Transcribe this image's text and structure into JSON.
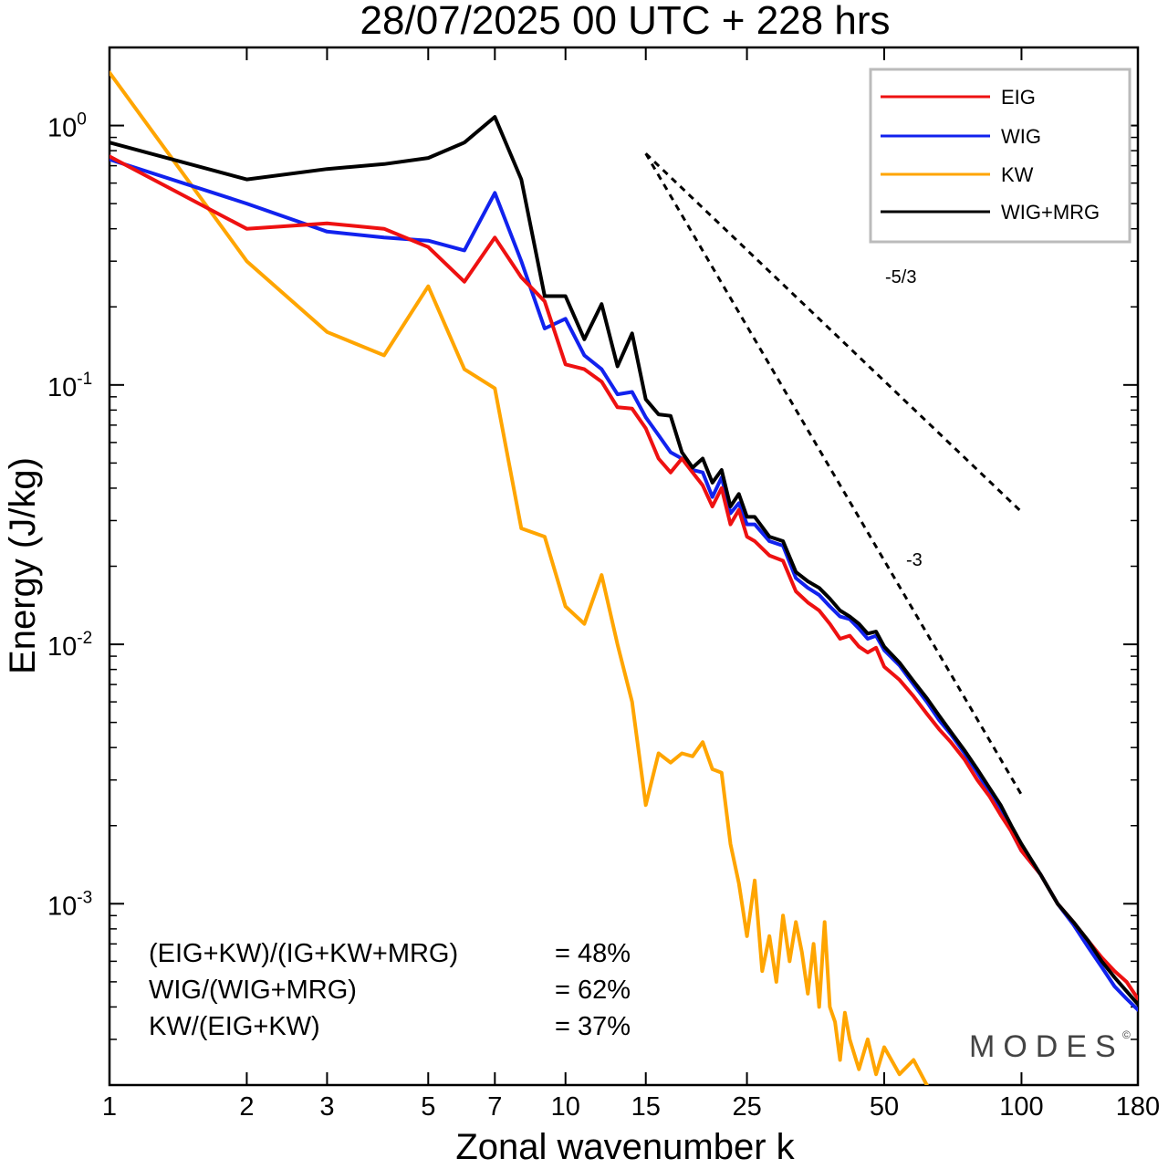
{
  "chart_data": {
    "type": "line",
    "title": "28/07/2025  00 UTC  + 228 hrs",
    "xlabel": "Zonal wavenumber k",
    "ylabel": "Energy (J/kg)",
    "xscale": "log",
    "yscale": "log",
    "xlim": [
      1,
      180
    ],
    "ylim": [
      0.0002,
      2.0
    ],
    "x_ticks": [
      {
        "value": 1,
        "label": "1"
      },
      {
        "value": 2,
        "label": "2"
      },
      {
        "value": 3,
        "label": "3"
      },
      {
        "value": 5,
        "label": "5"
      },
      {
        "value": 7,
        "label": "7"
      },
      {
        "value": 10,
        "label": "10"
      },
      {
        "value": 15,
        "label": "15"
      },
      {
        "value": 25,
        "label": "25"
      },
      {
        "value": 50,
        "label": "50"
      },
      {
        "value": 100,
        "label": "100"
      },
      {
        "value": 180,
        "label": "180"
      }
    ],
    "y_ticks": [
      {
        "value": 1,
        "base": "10",
        "exp": "0"
      },
      {
        "value": 0.1,
        "base": "10",
        "exp": "-1"
      },
      {
        "value": 0.01,
        "base": "10",
        "exp": "-2"
      },
      {
        "value": 0.001,
        "base": "10",
        "exp": "-3"
      }
    ],
    "series": [
      {
        "name": "EIG",
        "color": "#ee1111",
        "points": [
          [
            1,
            0.76
          ],
          [
            2,
            0.4
          ],
          [
            3,
            0.42
          ],
          [
            4,
            0.4
          ],
          [
            5,
            0.34
          ],
          [
            6,
            0.25
          ],
          [
            7,
            0.37
          ],
          [
            8,
            0.26
          ],
          [
            9,
            0.21
          ],
          [
            10,
            0.12
          ],
          [
            11,
            0.115
          ],
          [
            12,
            0.103
          ],
          [
            13,
            0.082
          ],
          [
            14,
            0.081
          ],
          [
            15,
            0.068
          ],
          [
            16,
            0.052
          ],
          [
            17,
            0.046
          ],
          [
            18,
            0.052
          ],
          [
            19,
            0.046
          ],
          [
            20,
            0.041
          ],
          [
            21,
            0.034
          ],
          [
            22,
            0.04
          ],
          [
            23,
            0.029
          ],
          [
            24,
            0.033
          ],
          [
            25,
            0.026
          ],
          [
            26,
            0.025
          ],
          [
            28,
            0.022
          ],
          [
            30,
            0.021
          ],
          [
            32,
            0.016
          ],
          [
            34,
            0.0145
          ],
          [
            36,
            0.0135
          ],
          [
            38,
            0.012
          ],
          [
            40,
            0.0105
          ],
          [
            42,
            0.0108
          ],
          [
            44,
            0.0098
          ],
          [
            46,
            0.0093
          ],
          [
            48,
            0.0097
          ],
          [
            50,
            0.0082
          ],
          [
            54,
            0.0073
          ],
          [
            58,
            0.0063
          ],
          [
            62,
            0.0054
          ],
          [
            66,
            0.0047
          ],
          [
            70,
            0.0042
          ],
          [
            75,
            0.0036
          ],
          [
            80,
            0.003
          ],
          [
            85,
            0.0026
          ],
          [
            90,
            0.0022
          ],
          [
            95,
            0.0019
          ],
          [
            100,
            0.0016
          ],
          [
            110,
            0.0013
          ],
          [
            120,
            0.001
          ],
          [
            130,
            0.00085
          ],
          [
            140,
            0.00072
          ],
          [
            150,
            0.00062
          ],
          [
            160,
            0.00055
          ],
          [
            170,
            0.0005
          ],
          [
            180,
            0.00043
          ]
        ]
      },
      {
        "name": "WIG",
        "color": "#1122ee",
        "points": [
          [
            1,
            0.74
          ],
          [
            2,
            0.5
          ],
          [
            3,
            0.39
          ],
          [
            4,
            0.37
          ],
          [
            5,
            0.36
          ],
          [
            6,
            0.33
          ],
          [
            7,
            0.55
          ],
          [
            8,
            0.3
          ],
          [
            9,
            0.165
          ],
          [
            10,
            0.18
          ],
          [
            11,
            0.13
          ],
          [
            12,
            0.115
          ],
          [
            13,
            0.092
          ],
          [
            14,
            0.094
          ],
          [
            15,
            0.075
          ],
          [
            16,
            0.064
          ],
          [
            17,
            0.055
          ],
          [
            18,
            0.052
          ],
          [
            19,
            0.047
          ],
          [
            20,
            0.046
          ],
          [
            21,
            0.037
          ],
          [
            22,
            0.044
          ],
          [
            23,
            0.032
          ],
          [
            24,
            0.035
          ],
          [
            25,
            0.029
          ],
          [
            26,
            0.029
          ],
          [
            28,
            0.025
          ],
          [
            30,
            0.024
          ],
          [
            32,
            0.018
          ],
          [
            34,
            0.0165
          ],
          [
            36,
            0.0155
          ],
          [
            38,
            0.014
          ],
          [
            40,
            0.0128
          ],
          [
            42,
            0.0125
          ],
          [
            44,
            0.0115
          ],
          [
            46,
            0.0105
          ],
          [
            48,
            0.0108
          ],
          [
            50,
            0.0095
          ],
          [
            54,
            0.0083
          ],
          [
            58,
            0.007
          ],
          [
            62,
            0.006
          ],
          [
            66,
            0.0051
          ],
          [
            70,
            0.0045
          ],
          [
            75,
            0.0038
          ],
          [
            80,
            0.0032
          ],
          [
            85,
            0.0027
          ],
          [
            90,
            0.0023
          ],
          [
            95,
            0.0019
          ],
          [
            100,
            0.0016
          ],
          [
            110,
            0.0013
          ],
          [
            120,
            0.001
          ],
          [
            130,
            0.00083
          ],
          [
            140,
            0.00068
          ],
          [
            150,
            0.00057
          ],
          [
            160,
            0.00048
          ],
          [
            170,
            0.00043
          ],
          [
            180,
            0.00039
          ]
        ]
      },
      {
        "name": "KW",
        "color": "#ffa500",
        "points": [
          [
            1,
            1.6
          ],
          [
            2,
            0.3
          ],
          [
            3,
            0.16
          ],
          [
            4,
            0.13
          ],
          [
            5,
            0.24
          ],
          [
            6,
            0.115
          ],
          [
            7,
            0.097
          ],
          [
            8,
            0.028
          ],
          [
            9,
            0.026
          ],
          [
            10,
            0.014
          ],
          [
            11,
            0.012
          ],
          [
            12,
            0.0185
          ],
          [
            13,
            0.01
          ],
          [
            14,
            0.006
          ],
          [
            15,
            0.0024
          ],
          [
            16,
            0.0038
          ],
          [
            17,
            0.0035
          ],
          [
            18,
            0.0038
          ],
          [
            19,
            0.0037
          ],
          [
            20,
            0.0042
          ],
          [
            21,
            0.0033
          ],
          [
            22,
            0.0032
          ],
          [
            23,
            0.0017
          ],
          [
            24,
            0.0012
          ],
          [
            25,
            0.00075
          ],
          [
            26,
            0.00123
          ],
          [
            27,
            0.00055
          ],
          [
            28,
            0.00075
          ],
          [
            29,
            0.0005
          ],
          [
            30,
            0.0009
          ],
          [
            31,
            0.0006
          ],
          [
            32,
            0.00085
          ],
          [
            33,
            0.00065
          ],
          [
            34,
            0.00045
          ],
          [
            35,
            0.0007
          ],
          [
            36,
            0.0004
          ],
          [
            37,
            0.00085
          ],
          [
            38,
            0.0004
          ],
          [
            39,
            0.00035
          ],
          [
            40,
            0.00025
          ],
          [
            41,
            0.00038
          ],
          [
            42,
            0.0003
          ],
          [
            44,
            0.00023
          ],
          [
            46,
            0.0003
          ],
          [
            48,
            0.00022
          ],
          [
            50,
            0.00028
          ],
          [
            54,
            0.00022
          ],
          [
            58,
            0.00025
          ],
          [
            62,
            0.0002
          ]
        ]
      },
      {
        "name": "WIG+MRG",
        "color": "#000000",
        "points": [
          [
            1,
            0.86
          ],
          [
            2,
            0.62
          ],
          [
            3,
            0.68
          ],
          [
            4,
            0.71
          ],
          [
            5,
            0.75
          ],
          [
            6,
            0.86
          ],
          [
            7,
            1.08
          ],
          [
            8,
            0.62
          ],
          [
            9,
            0.22
          ],
          [
            10,
            0.22
          ],
          [
            11,
            0.15
          ],
          [
            12,
            0.205
          ],
          [
            13,
            0.118
          ],
          [
            14,
            0.158
          ],
          [
            15,
            0.088
          ],
          [
            16,
            0.077
          ],
          [
            17,
            0.076
          ],
          [
            18,
            0.055
          ],
          [
            19,
            0.048
          ],
          [
            20,
            0.052
          ],
          [
            21,
            0.042
          ],
          [
            22,
            0.047
          ],
          [
            23,
            0.034
          ],
          [
            24,
            0.038
          ],
          [
            25,
            0.031
          ],
          [
            26,
            0.031
          ],
          [
            28,
            0.026
          ],
          [
            30,
            0.025
          ],
          [
            32,
            0.019
          ],
          [
            34,
            0.0175
          ],
          [
            36,
            0.0165
          ],
          [
            38,
            0.015
          ],
          [
            40,
            0.0135
          ],
          [
            42,
            0.0128
          ],
          [
            44,
            0.012
          ],
          [
            46,
            0.011
          ],
          [
            48,
            0.0112
          ],
          [
            50,
            0.0098
          ],
          [
            54,
            0.0085
          ],
          [
            58,
            0.0072
          ],
          [
            62,
            0.0062
          ],
          [
            66,
            0.0053
          ],
          [
            70,
            0.0046
          ],
          [
            75,
            0.0039
          ],
          [
            80,
            0.0033
          ],
          [
            85,
            0.0028
          ],
          [
            90,
            0.0024
          ],
          [
            95,
            0.002
          ],
          [
            100,
            0.0017
          ],
          [
            110,
            0.0013
          ],
          [
            120,
            0.001
          ],
          [
            130,
            0.00085
          ],
          [
            140,
            0.00072
          ],
          [
            150,
            0.0006
          ],
          [
            160,
            0.00052
          ],
          [
            170,
            0.00046
          ],
          [
            180,
            0.00041
          ]
        ]
      }
    ],
    "reference_lines": [
      {
        "label": "-5/3",
        "slope": -1.6667,
        "x": [
          15,
          100
        ],
        "y": [
          0.78,
          0.0324
        ]
      },
      {
        "label": "-3",
        "slope": -3,
        "x": [
          15,
          100
        ],
        "y": [
          0.78,
          0.00263
        ]
      }
    ],
    "legend": {
      "position": "top-right",
      "entries": [
        {
          "name": "EIG",
          "color": "#ee1111"
        },
        {
          "name": "WIG",
          "color": "#1122ee"
        },
        {
          "name": "KW",
          "color": "#ffa500"
        },
        {
          "name": "WIG+MRG",
          "color": "#000000"
        }
      ]
    },
    "annotations": [
      {
        "formula": "(EIG+KW)/(IG+KW+MRG)",
        "value": "= 48%"
      },
      {
        "formula": "WIG/(WIG+MRG)",
        "value": "= 62%"
      },
      {
        "formula": "KW/(EIG+KW)",
        "value": "= 37%"
      }
    ],
    "watermark": "MODES",
    "watermark_mark": "©"
  }
}
